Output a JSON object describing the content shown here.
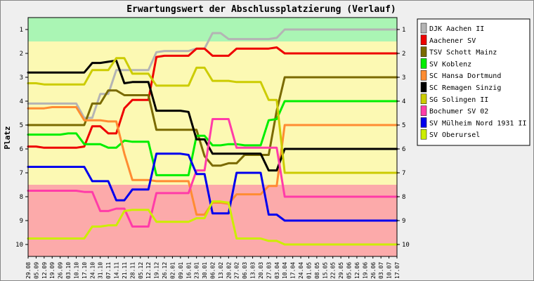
{
  "chart_data": {
    "type": "line",
    "title": "Erwartungswert der Abschlussplatzierung (Verlauf)",
    "xlabel": "",
    "ylabel": "Platz",
    "ylim": [
      1,
      10
    ],
    "y_inverted": true,
    "grid": false,
    "legend_position": "right",
    "bands": [
      {
        "from": 1,
        "to": 1.5,
        "color": "#aaf5b4"
      },
      {
        "from": 1.5,
        "to": 7.5,
        "color": "#fcf9b3"
      },
      {
        "from": 7.5,
        "to": 10.5,
        "color": "#fcaaaa"
      }
    ],
    "yticks": [
      1,
      2,
      3,
      4,
      5,
      6,
      7,
      8,
      9,
      10
    ],
    "categories": [
      "29.08",
      "05.09",
      "12.09",
      "19.09",
      "26.09",
      "03.10",
      "10.10",
      "17.10",
      "24.10",
      "31.10",
      "07.11",
      "14.11",
      "21.11",
      "28.11",
      "05.12",
      "12.12",
      "19.12",
      "26.12",
      "02.01",
      "09.01",
      "16.01",
      "23.01",
      "30.01",
      "06.02",
      "13.02",
      "20.02",
      "27.02",
      "06.03",
      "13.03",
      "20.03",
      "27.03",
      "03.04",
      "10.04",
      "17.04",
      "24.04",
      "01.05",
      "08.05",
      "15.05",
      "22.05",
      "29.05",
      "05.06",
      "12.06",
      "19.06",
      "26.06",
      "03.07",
      "10.07",
      "17.07"
    ],
    "series": [
      {
        "name": "DJK Aachen II",
        "color": "#b4b4b4",
        "values": [
          4.1,
          4.1,
          4.1,
          4.1,
          4.1,
          4.1,
          4.1,
          4.7,
          4.7,
          3.7,
          3.7,
          2.7,
          2.7,
          2.7,
          2.7,
          2.7,
          1.95,
          1.9,
          1.9,
          1.9,
          1.9,
          1.8,
          1.8,
          1.15,
          1.15,
          1.4,
          1.4,
          1.4,
          1.4,
          1.4,
          1.4,
          1.35,
          1.0,
          1.0,
          1.0,
          1.0,
          1.0,
          1.0,
          1.0,
          1.0,
          1.0,
          1.0,
          1.0,
          1.0,
          1.0,
          1.0,
          1.0
        ]
      },
      {
        "name": "Aachener SV",
        "color": "#ee0000",
        "values": [
          5.9,
          5.9,
          5.95,
          5.95,
          5.95,
          5.95,
          5.95,
          5.9,
          5.05,
          5.05,
          5.35,
          5.35,
          4.3,
          3.95,
          3.95,
          3.95,
          2.15,
          2.1,
          2.1,
          2.1,
          2.1,
          1.8,
          1.8,
          2.1,
          2.1,
          2.1,
          1.8,
          1.8,
          1.8,
          1.8,
          1.8,
          1.75,
          2.0,
          2.0,
          2.0,
          2.0,
          2.0,
          2.0,
          2.0,
          2.0,
          2.0,
          2.0,
          2.0,
          2.0,
          2.0,
          2.0,
          2.0
        ]
      },
      {
        "name": "TSV Schott Mainz",
        "color": "#7a6a00",
        "values": [
          5.0,
          5.0,
          5.0,
          5.0,
          5.0,
          5.0,
          5.0,
          5.0,
          4.1,
          4.1,
          3.55,
          3.55,
          3.75,
          3.75,
          3.75,
          3.75,
          5.2,
          5.2,
          5.2,
          5.2,
          5.2,
          5.2,
          6.3,
          6.7,
          6.7,
          6.6,
          6.6,
          6.25,
          6.25,
          6.25,
          6.25,
          4.4,
          3.0,
          3.0,
          3.0,
          3.0,
          3.0,
          3.0,
          3.0,
          3.0,
          3.0,
          3.0,
          3.0,
          3.0,
          3.0,
          3.0,
          3.0
        ]
      },
      {
        "name": "SV Koblenz",
        "color": "#00ee00",
        "values": [
          5.4,
          5.4,
          5.4,
          5.4,
          5.4,
          5.35,
          5.35,
          5.8,
          5.8,
          5.8,
          5.95,
          5.95,
          5.65,
          5.7,
          5.7,
          5.7,
          7.1,
          7.1,
          7.1,
          7.1,
          7.1,
          5.45,
          5.45,
          5.85,
          5.85,
          5.8,
          5.8,
          5.85,
          5.85,
          5.85,
          4.8,
          4.75,
          4.0,
          4.0,
          4.0,
          4.0,
          4.0,
          4.0,
          4.0,
          4.0,
          4.0,
          4.0,
          4.0,
          4.0,
          4.0,
          4.0,
          4.0
        ]
      },
      {
        "name": "SC Hansa Dortmund",
        "color": "#ff8c32",
        "values": [
          4.3,
          4.3,
          4.3,
          4.25,
          4.25,
          4.25,
          4.25,
          4.8,
          4.8,
          4.8,
          4.85,
          4.85,
          6.2,
          7.3,
          7.3,
          7.3,
          7.35,
          7.35,
          7.35,
          7.35,
          7.35,
          8.75,
          8.75,
          8.25,
          8.25,
          8.3,
          7.9,
          7.9,
          7.9,
          7.9,
          7.55,
          7.55,
          5.0,
          5.0,
          5.0,
          5.0,
          5.0,
          5.0,
          5.0,
          5.0,
          5.0,
          5.0,
          5.0,
          5.0,
          5.0,
          5.0,
          5.0
        ]
      },
      {
        "name": "SC Remagen Sinzig",
        "color": "#000000",
        "values": [
          2.8,
          2.8,
          2.8,
          2.8,
          2.8,
          2.8,
          2.8,
          2.8,
          2.4,
          2.4,
          2.35,
          2.3,
          3.25,
          3.2,
          3.2,
          3.2,
          4.4,
          4.4,
          4.4,
          4.4,
          4.45,
          5.6,
          5.6,
          6.2,
          6.2,
          6.2,
          6.2,
          6.2,
          6.2,
          6.2,
          6.9,
          6.9,
          6.0,
          6.0,
          6.0,
          6.0,
          6.0,
          6.0,
          6.0,
          6.0,
          6.0,
          6.0,
          6.0,
          6.0,
          6.0,
          6.0,
          6.0
        ]
      },
      {
        "name": "SG Solingen II",
        "color": "#cccc00",
        "values": [
          3.25,
          3.25,
          3.3,
          3.3,
          3.3,
          3.3,
          3.3,
          3.3,
          2.7,
          2.7,
          2.7,
          2.2,
          2.2,
          2.85,
          2.85,
          2.85,
          3.35,
          3.35,
          3.35,
          3.35,
          3.35,
          2.6,
          2.6,
          3.15,
          3.15,
          3.15,
          3.2,
          3.2,
          3.2,
          3.2,
          3.95,
          3.95,
          7.0,
          7.0,
          7.0,
          7.0,
          7.0,
          7.0,
          7.0,
          7.0,
          7.0,
          7.0,
          7.0,
          7.0,
          7.0,
          7.0,
          7.0
        ]
      },
      {
        "name": "Bochumer SV 02",
        "color": "#ff3ca8",
        "values": [
          7.75,
          7.75,
          7.75,
          7.75,
          7.75,
          7.75,
          7.75,
          7.8,
          7.8,
          8.6,
          8.6,
          8.5,
          8.5,
          9.25,
          9.25,
          9.25,
          7.85,
          7.85,
          7.85,
          7.85,
          7.85,
          6.9,
          6.9,
          4.75,
          4.75,
          4.75,
          5.95,
          5.95,
          5.95,
          5.95,
          5.95,
          5.95,
          8.0,
          8.0,
          8.0,
          8.0,
          8.0,
          8.0,
          8.0,
          8.0,
          8.0,
          8.0,
          8.0,
          8.0,
          8.0,
          8.0,
          8.0
        ]
      },
      {
        "name": "SV Mülheim Nord 1931 II",
        "color": "#0000ee",
        "values": [
          6.75,
          6.75,
          6.75,
          6.75,
          6.75,
          6.75,
          6.75,
          6.75,
          7.35,
          7.35,
          7.35,
          8.15,
          8.15,
          7.7,
          7.7,
          7.7,
          6.2,
          6.2,
          6.2,
          6.2,
          6.25,
          7.05,
          7.05,
          8.7,
          8.7,
          8.7,
          7.0,
          7.0,
          7.0,
          7.0,
          8.75,
          8.75,
          9.0,
          9.0,
          9.0,
          9.0,
          9.0,
          9.0,
          9.0,
          9.0,
          9.0,
          9.0,
          9.0,
          9.0,
          9.0,
          9.0,
          9.0
        ]
      },
      {
        "name": "SV Oberursel",
        "color": "#ccee00",
        "values": [
          9.75,
          9.75,
          9.75,
          9.75,
          9.75,
          9.75,
          9.75,
          9.75,
          9.25,
          9.25,
          9.2,
          9.2,
          8.6,
          8.55,
          8.55,
          8.55,
          9.05,
          9.05,
          9.05,
          9.05,
          9.05,
          8.9,
          8.9,
          8.2,
          8.2,
          8.25,
          9.75,
          9.75,
          9.75,
          9.75,
          9.85,
          9.85,
          10.0,
          10.0,
          10.0,
          10.0,
          10.0,
          10.0,
          10.0,
          10.0,
          10.0,
          10.0,
          10.0,
          10.0,
          10.0,
          10.0,
          10.0
        ]
      }
    ]
  }
}
